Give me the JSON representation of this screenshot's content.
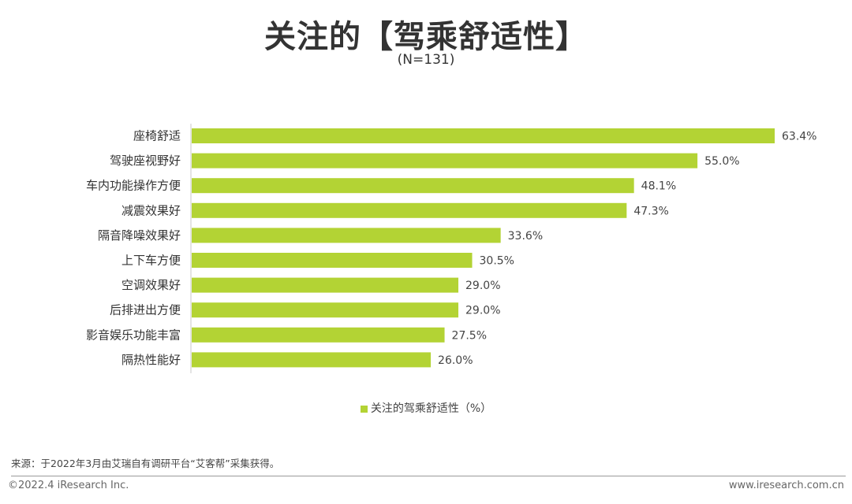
{
  "header": {
    "title": "关注的【驾乘舒适性】",
    "subtitle": "(N=131)"
  },
  "chart_data": {
    "type": "bar",
    "orientation": "horizontal",
    "categories": [
      "座椅舒适",
      "驾驶座视野好",
      "车内功能操作方便",
      "减震效果好",
      "隔音降噪效果好",
      "上下车方便",
      "空调效果好",
      "后排进出方便",
      "影音娱乐功能丰富",
      "隔热性能好"
    ],
    "series": [
      {
        "name": "关注的驾乘舒适性（%）",
        "values": [
          63.4,
          55.0,
          48.1,
          47.3,
          33.6,
          30.5,
          29.0,
          29.0,
          27.5,
          26.0
        ],
        "value_labels": [
          "63.4%",
          "55.0%",
          "48.1%",
          "47.3%",
          "33.6%",
          "30.5%",
          "29.0%",
          "29.0%",
          "27.5%",
          "26.0%"
        ]
      }
    ],
    "xlim": [
      0,
      63.4
    ],
    "grid": false,
    "legend_position": "bottom",
    "bar_color": "#b3d334"
  },
  "footer": {
    "source": "来源：于2022年3月由艾瑞自有调研平台“艾客帮”采集获得。",
    "copyright": "©2022.4 iResearch Inc.",
    "website": "www.iresearch.com.cn"
  }
}
